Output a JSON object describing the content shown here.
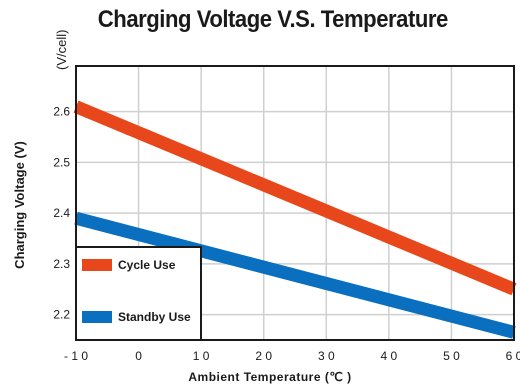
{
  "chart_data": {
    "type": "line",
    "title": "Charging Voltage V.S. Temperature",
    "unit_label": "(V/cell)",
    "xlabel": "Ambient Temperature (℃ )",
    "ylabel": "Charging Voltage (V)",
    "xlim": [
      -10,
      60
    ],
    "ylim": [
      2.15,
      2.69
    ],
    "xticks": [
      -10,
      0,
      10,
      20,
      30,
      40,
      50,
      60
    ],
    "yticks": [
      2.2,
      2.3,
      2.4,
      2.5,
      2.6
    ],
    "grid": true,
    "legend_position": "bottom-left",
    "series": [
      {
        "name": "Cycle Use",
        "color": "#e8471c",
        "x": [
          -10,
          60
        ],
        "y": [
          2.61,
          2.25
        ]
      },
      {
        "name": "Standby Use",
        "color": "#0a6fbe",
        "x": [
          -10,
          60
        ],
        "y": [
          2.39,
          2.165
        ]
      }
    ]
  }
}
